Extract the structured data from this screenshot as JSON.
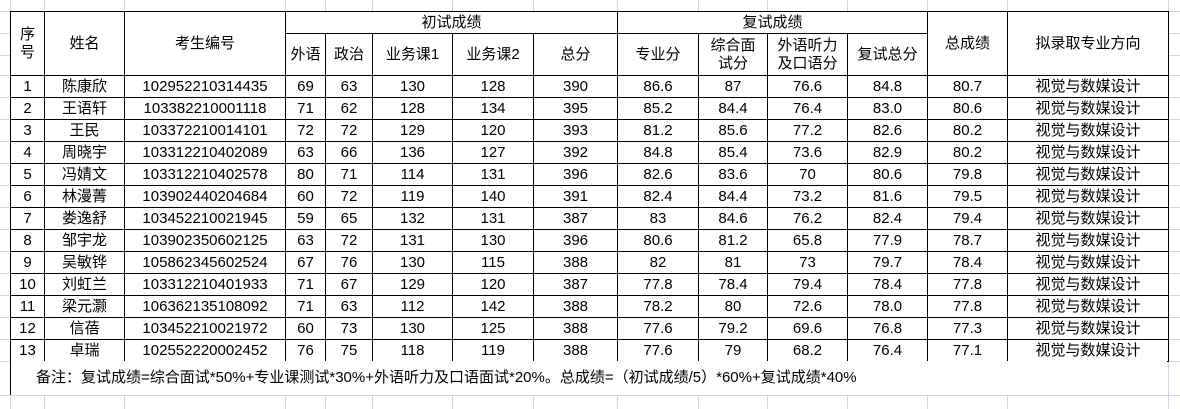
{
  "table": {
    "header": {
      "no": "序\n号",
      "name": "姓名",
      "candidate_id": "考生编号",
      "initial_group": "初试成绩",
      "retest_group": "复试成绩",
      "foreign_lang": "外语",
      "politics": "政治",
      "course1": "业务课1",
      "course2": "业务课2",
      "initial_total": "总分",
      "major_score": "专业分",
      "interview_score": "综合面\n试分",
      "listening_speaking": "外语听力\n及口语分",
      "retest_total": "复试总分",
      "overall": "总成绩",
      "admission_major": "拟录取专业方向"
    },
    "rows": [
      [
        "1",
        "陈康欣",
        "102952210314435",
        "69",
        "63",
        "130",
        "128",
        "390",
        "86.6",
        "87",
        "76.6",
        "84.8",
        "80.7",
        "视觉与数媒设计"
      ],
      [
        "2",
        "王语轩",
        "103382210001118",
        "71",
        "62",
        "128",
        "134",
        "395",
        "85.2",
        "84.4",
        "76.4",
        "83.0",
        "80.6",
        "视觉与数媒设计"
      ],
      [
        "3",
        "王民",
        "103372210014101",
        "72",
        "72",
        "129",
        "120",
        "393",
        "81.2",
        "85.6",
        "77.2",
        "82.6",
        "80.2",
        "视觉与数媒设计"
      ],
      [
        "4",
        "周晓宇",
        "103312210402089",
        "63",
        "66",
        "136",
        "127",
        "392",
        "84.8",
        "85.4",
        "73.6",
        "82.9",
        "80.2",
        "视觉与数媒设计"
      ],
      [
        "5",
        "冯婧文",
        "103312210402578",
        "80",
        "71",
        "114",
        "131",
        "396",
        "82.6",
        "83.6",
        "70",
        "80.6",
        "79.8",
        "视觉与数媒设计"
      ],
      [
        "6",
        "林漫菁",
        "103902440204684",
        "60",
        "72",
        "119",
        "140",
        "391",
        "82.4",
        "84.4",
        "73.2",
        "81.6",
        "79.5",
        "视觉与数媒设计"
      ],
      [
        "7",
        "娄逸舒",
        "103452210021945",
        "59",
        "65",
        "132",
        "131",
        "387",
        "83",
        "84.6",
        "76.2",
        "82.4",
        "79.4",
        "视觉与数媒设计"
      ],
      [
        "8",
        "邹宇龙",
        "103902350602125",
        "63",
        "72",
        "131",
        "130",
        "396",
        "80.6",
        "81.2",
        "65.8",
        "77.9",
        "78.7",
        "视觉与数媒设计"
      ],
      [
        "9",
        "吴敏铧",
        "105862345602524",
        "67",
        "76",
        "130",
        "115",
        "388",
        "82",
        "81",
        "73",
        "79.7",
        "78.4",
        "视觉与数媒设计"
      ],
      [
        "10",
        "刘虹兰",
        "103312210401933",
        "71",
        "67",
        "129",
        "120",
        "387",
        "77.8",
        "78.4",
        "79.4",
        "78.4",
        "77.8",
        "视觉与数媒设计"
      ],
      [
        "11",
        "梁元灏",
        "106362135108092",
        "71",
        "63",
        "112",
        "142",
        "388",
        "78.2",
        "80",
        "72.6",
        "78.0",
        "77.8",
        "视觉与数媒设计"
      ],
      [
        "12",
        "信蓓",
        "103452210021972",
        "60",
        "73",
        "130",
        "125",
        "388",
        "77.6",
        "79.2",
        "69.6",
        "76.8",
        "77.3",
        "视觉与数媒设计"
      ],
      [
        "13",
        "卓瑞",
        "102552220002452",
        "76",
        "75",
        "118",
        "119",
        "388",
        "77.6",
        "79",
        "68.2",
        "76.4",
        "77.1",
        "视觉与数媒设计"
      ]
    ]
  },
  "note": "备注：复试成绩=综合面试*50%+专业课测试*30%+外语听力及口语面试*20%。总成绩=（初试成绩/5）*60%+复试成绩*40%"
}
